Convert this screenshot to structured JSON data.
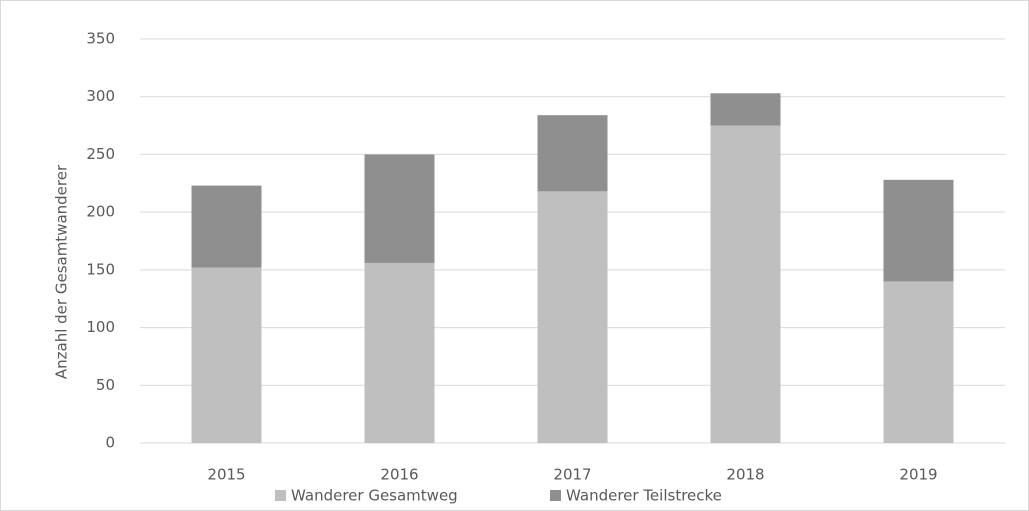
{
  "chart_data": {
    "type": "stacked_bar",
    "y_label": "Anzahl der Gesamtwanderer",
    "categories": [
      "2015",
      "2016",
      "2017",
      "2018",
      "2019"
    ],
    "series": [
      {
        "name": "Wanderer Gesamtweg",
        "color": "#bfbfbf",
        "values": [
          152,
          156,
          218,
          275,
          140
        ]
      },
      {
        "name": "Wanderer Teilstrecke",
        "color": "#8f8f8f",
        "values": [
          71,
          94,
          66,
          28,
          88
        ]
      }
    ],
    "ylim": [
      0,
      350
    ],
    "yticks": [
      0,
      50,
      100,
      150,
      200,
      250,
      300,
      350
    ],
    "grid": true,
    "legend": "bottom"
  }
}
